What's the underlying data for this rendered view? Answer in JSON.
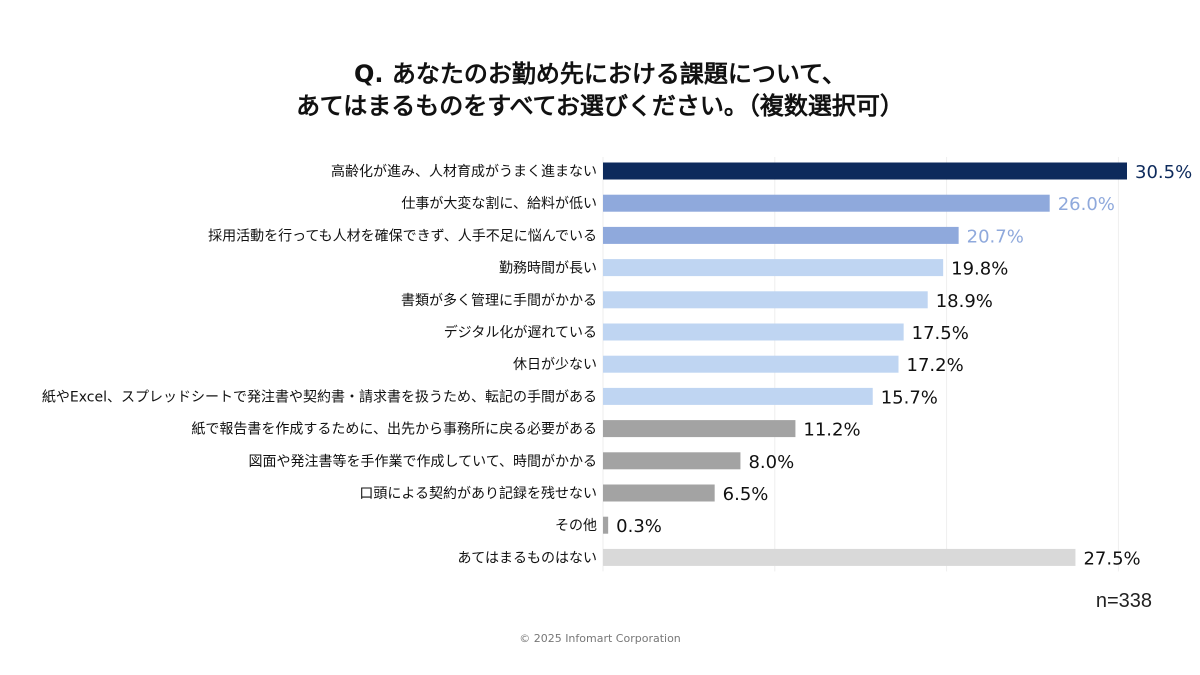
{
  "header": {
    "title_line1": "Q. あなたのお勤め先における課題について、",
    "title_line2": "あてはまるものをすべてお選びください。（複数選択可）"
  },
  "footer": {
    "n": "n=338",
    "copyright": "© 2025 Infomart Corporation"
  },
  "colors": {
    "top1": "#0d2a5c",
    "top2_3": "#8fa9dc",
    "mid": "#bfd5f2",
    "low": "#a3a3a3",
    "none": "#d9d9d9",
    "label_top1": "#0d2a5c",
    "label_top2_3": "#8fa9dc",
    "label_default": "#111111"
  },
  "chart_data": {
    "type": "bar",
    "orientation": "horizontal",
    "title": "Q. あなたのお勤め先における課題について、あてはまるものをすべてお選びください。（複数選択可）",
    "unit": "%",
    "xlim": [
      0,
      30.5
    ],
    "categories": [
      "高齢化が進み、人材育成がうまく進まない",
      "仕事が大変な割に、給料が低い",
      "採用活動を行っても人材を確保できず、人手不足に悩んでいる",
      "勤務時間が長い",
      "書類が多く管理に手間がかかる",
      "デジタル化が遅れている",
      "休日が少ない",
      "紙やExcel、スプレッドシートで発注書や契約書・請求書を扱うため、転記の手間がある",
      "紙で報告書を作成するために、出先から事務所に戻る必要がある",
      "図面や発注書等を手作業で作成していて、時間がかかる",
      "口頭による契約があり記録を残せない",
      "その他",
      "あてはまるものはない"
    ],
    "values": [
      30.5,
      26.0,
      20.7,
      19.8,
      18.9,
      17.5,
      17.2,
      15.7,
      11.2,
      8.0,
      6.5,
      0.3,
      27.5
    ],
    "value_labels": [
      "30.5%",
      "26.0%",
      "20.7%",
      "19.8%",
      "18.9%",
      "17.5%",
      "17.2%",
      "15.7%",
      "11.2%",
      "8.0%",
      "6.5%",
      "0.3%",
      "27.5%"
    ],
    "color_groups": [
      "top1",
      "top2_3",
      "top2_3",
      "mid",
      "mid",
      "mid",
      "mid",
      "mid",
      "low",
      "low",
      "low",
      "low",
      "none"
    ],
    "label_color_groups": [
      "label_top1",
      "label_top2_3",
      "label_top2_3",
      "label_default",
      "label_default",
      "label_default",
      "label_default",
      "label_default",
      "label_default",
      "label_default",
      "label_default",
      "label_default",
      "label_default"
    ]
  }
}
